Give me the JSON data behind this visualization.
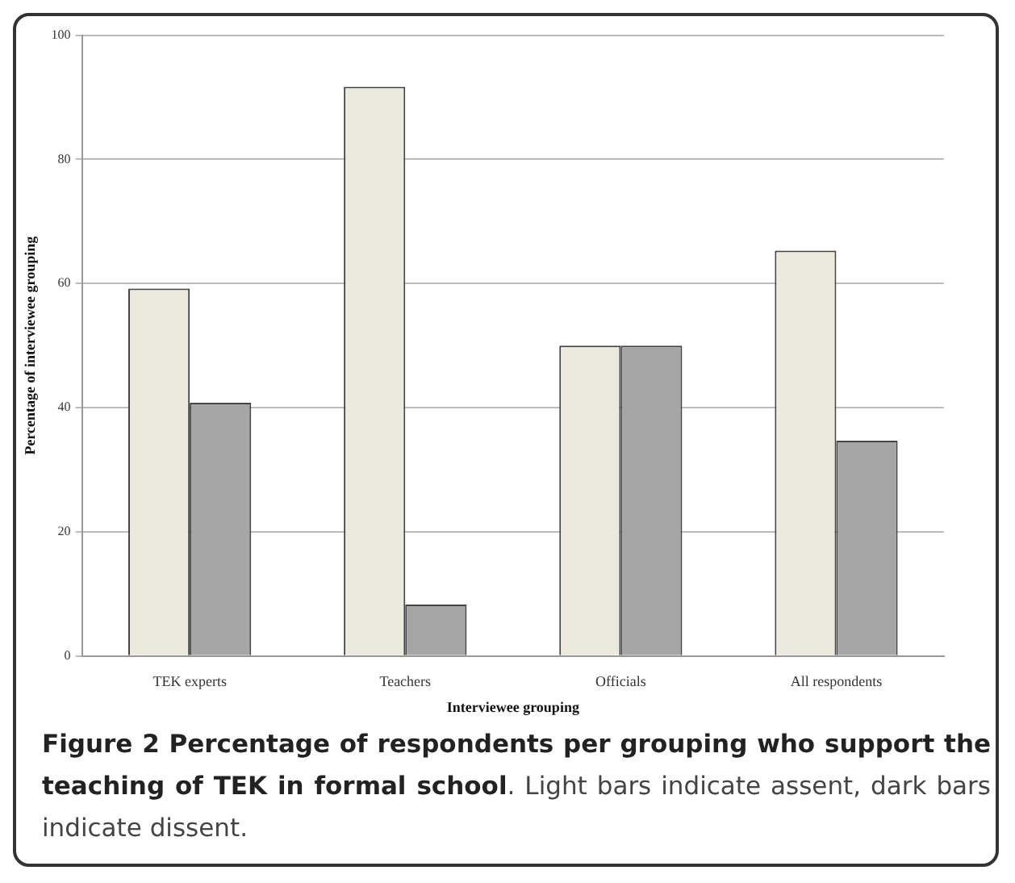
{
  "chart_data": {
    "type": "bar",
    "title": "Figure 2 Percentage of respondents per grouping who support the teaching of TEK in formal school",
    "annotations": [
      ". Light bars indicate assent, dark bars indicate dissent."
    ],
    "xlabel": "Interviewee grouping",
    "ylabel": "Percentage of interviewee grouping",
    "categories": [
      "TEK experts",
      "Teachers",
      "Officials",
      "All respondents"
    ],
    "series": [
      {
        "color": "#ece9df",
        "values": [
          59.2,
          91.7,
          50,
          65.3
        ]
      },
      {
        "color": "#a6a6a6",
        "values": [
          40.8,
          8.3,
          50,
          34.7
        ]
      }
    ],
    "ylim": [
      0,
      100
    ],
    "yticks": [
      0,
      20,
      40,
      60,
      80,
      100
    ],
    "grid": "y",
    "legend": false
  }
}
